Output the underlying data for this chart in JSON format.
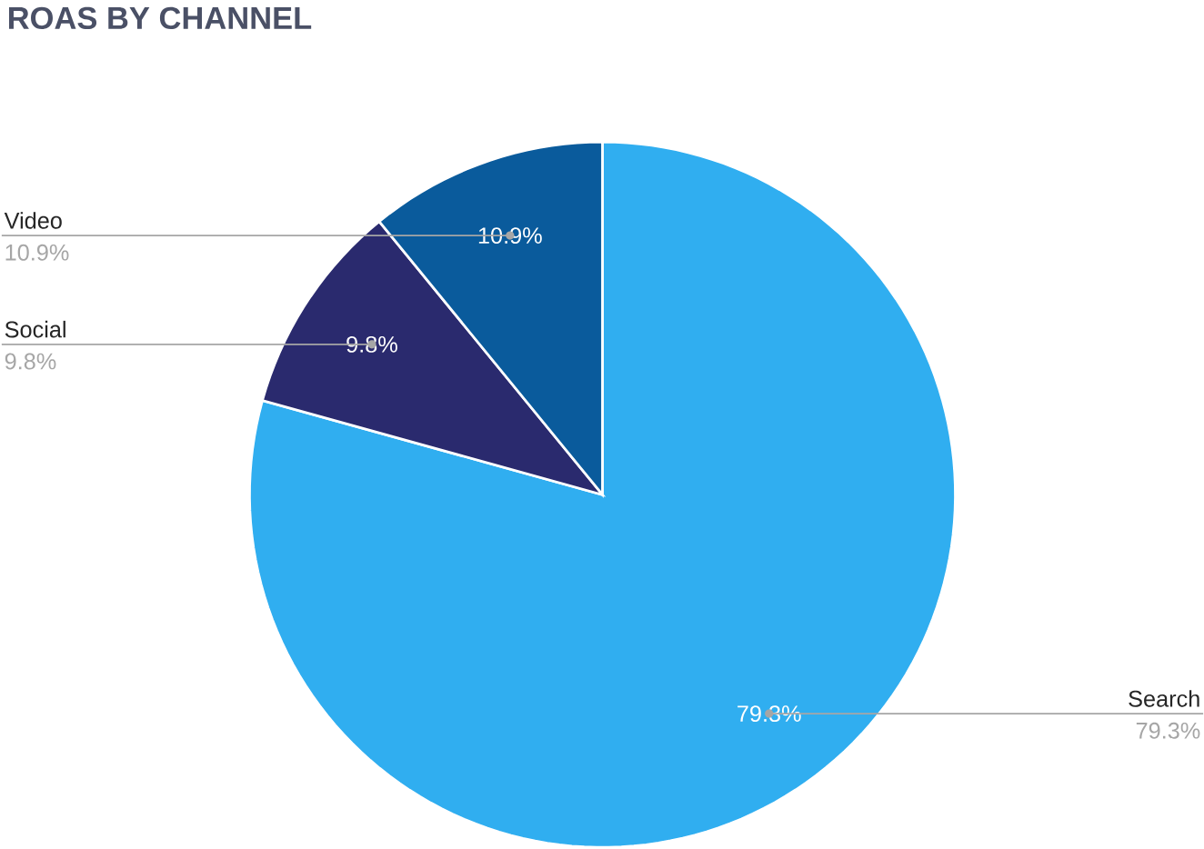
{
  "chart_data": {
    "type": "pie",
    "title": "ROAS BY CHANNEL",
    "categories": [
      "Search",
      "Social",
      "Video"
    ],
    "values": [
      79.3,
      9.8,
      10.9
    ],
    "colors": [
      "#30aef0",
      "#2a2a6e",
      "#0a5b9c"
    ],
    "value_labels": [
      "79.3%",
      "9.8%",
      "10.9%"
    ]
  }
}
